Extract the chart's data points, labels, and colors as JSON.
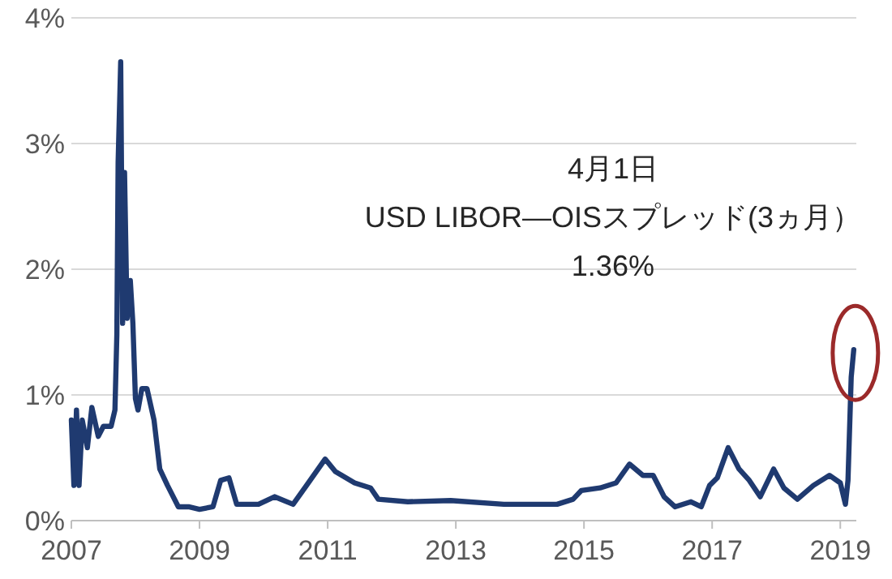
{
  "chart_data": {
    "type": "line",
    "annotations": [
      {
        "text": "4月1日\nUSD LIBOR—OISスプレッド(3ヵ月）\n1.36%",
        "x": 2019.21,
        "y": 1.36
      }
    ],
    "x": [
      2007.0,
      2007.04,
      2007.08,
      2007.12,
      2007.17,
      2007.25,
      2007.32,
      2007.42,
      2007.5,
      2007.62,
      2007.68,
      2007.71,
      2007.73,
      2007.77,
      2007.8,
      2007.83,
      2007.87,
      2007.92,
      2007.96,
      2008.0,
      2008.04,
      2008.1,
      2008.18,
      2008.29,
      2008.38,
      2008.5,
      2008.67,
      2008.83,
      2009.0,
      2009.21,
      2009.33,
      2009.46,
      2009.58,
      2009.92,
      2010.17,
      2010.46,
      2010.67,
      2010.96,
      2011.12,
      2011.42,
      2011.67,
      2011.79,
      2012.25,
      2012.92,
      2013.75,
      2014.58,
      2014.83,
      2014.96,
      2015.25,
      2015.5,
      2015.71,
      2015.92,
      2016.08,
      2016.25,
      2016.42,
      2016.67,
      2016.83,
      2016.96,
      2017.08,
      2017.25,
      2017.42,
      2017.58,
      2017.75,
      2017.96,
      2018.12,
      2018.33,
      2018.58,
      2018.83,
      2019.0,
      2019.08,
      2019.12,
      2019.17,
      2019.21
    ],
    "series": [
      {
        "color": "#1f3a70",
        "values": [
          0.8,
          0.28,
          0.88,
          0.28,
          0.8,
          0.58,
          0.9,
          0.67,
          0.75,
          0.75,
          0.88,
          1.48,
          2.85,
          3.65,
          1.57,
          2.77,
          1.61,
          1.91,
          1.57,
          0.97,
          0.88,
          1.05,
          1.05,
          0.8,
          0.41,
          0.28,
          0.11,
          0.11,
          0.09,
          0.11,
          0.32,
          0.34,
          0.13,
          0.13,
          0.19,
          0.13,
          0.28,
          0.49,
          0.39,
          0.3,
          0.26,
          0.17,
          0.15,
          0.16,
          0.13,
          0.13,
          0.17,
          0.24,
          0.26,
          0.3,
          0.45,
          0.36,
          0.36,
          0.19,
          0.11,
          0.15,
          0.11,
          0.28,
          0.34,
          0.58,
          0.41,
          0.32,
          0.19,
          0.41,
          0.26,
          0.17,
          0.28,
          0.36,
          0.3,
          0.13,
          0.32,
          1.14,
          1.36
        ]
      }
    ],
    "xlim": [
      2007,
      2019.25
    ],
    "xticks": [
      2007,
      2009,
      2011,
      2013,
      2015,
      2017,
      2019
    ],
    "ylim": [
      0,
      4
    ],
    "yticks": [
      {
        "value": 0,
        "label": "0%"
      },
      {
        "value": 1,
        "label": "1%"
      },
      {
        "value": 2,
        "label": "2%"
      },
      {
        "value": 3,
        "label": "3%"
      },
      {
        "value": 4,
        "label": "4%"
      }
    ],
    "grid": "y",
    "marker": "none",
    "line_style": "solid"
  }
}
